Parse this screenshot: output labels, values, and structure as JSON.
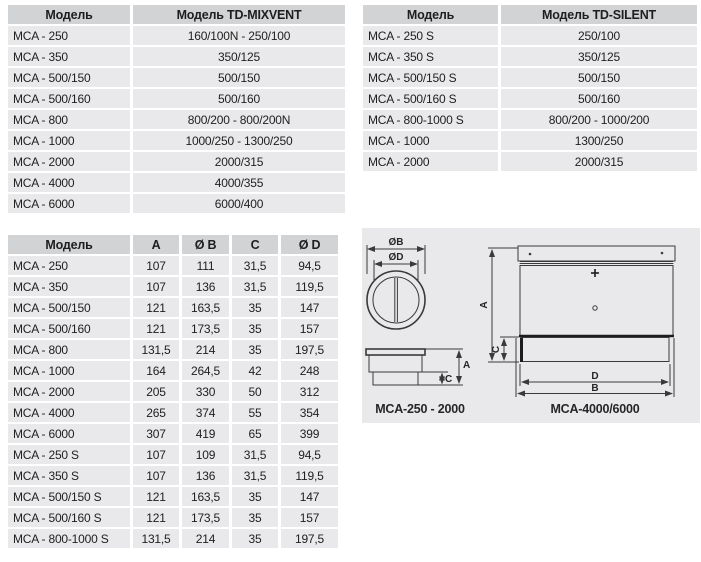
{
  "colors": {
    "page_bg": "#ffffff",
    "table_header_bg": "#d2d3d5",
    "table_row_bg": "#e9e9eb",
    "text": "#1e1e1e",
    "diagram_panel_bg": "#e9e9eb",
    "diagram_line": "#3a3a3a"
  },
  "tables": [
    {
      "id": "mixvent",
      "headers": [
        "Модель",
        "Модель TD-MIXVENT"
      ],
      "rows": [
        [
          "MCA - 250",
          "160/100N - 250/100"
        ],
        [
          "MCA - 350",
          "350/125"
        ],
        [
          "MCA - 500/150",
          "500/150"
        ],
        [
          "MCA - 500/160",
          "500/160"
        ],
        [
          "MCA - 800",
          "800/200 - 800/200N"
        ],
        [
          "MCA - 1000",
          "1000/250 - 1300/250"
        ],
        [
          "MCA - 2000",
          "2000/315"
        ],
        [
          "MCA - 4000",
          "4000/355"
        ],
        [
          "MCA - 6000",
          "6000/400"
        ]
      ]
    },
    {
      "id": "silent",
      "headers": [
        "Модель",
        "Модель TD-SILENT"
      ],
      "rows": [
        [
          "MCA - 250 S",
          "250/100"
        ],
        [
          "MCA - 350 S",
          "350/125"
        ],
        [
          "MCA - 500/150 S",
          "500/150"
        ],
        [
          "MCA - 500/160 S",
          "500/160"
        ],
        [
          "MCA - 800-1000 S",
          "800/200 - 1000/200"
        ],
        [
          "MCA - 1000",
          "1300/250"
        ],
        [
          "MCA - 2000",
          "2000/315"
        ]
      ]
    },
    {
      "id": "dimensions",
      "headers": [
        "Модель",
        "A",
        "Ø B",
        "C",
        "Ø D"
      ],
      "rows": [
        [
          "MCA - 250",
          "107",
          "111",
          "31,5",
          "94,5"
        ],
        [
          "MCA - 350",
          "107",
          "136",
          "31,5",
          "119,5"
        ],
        [
          "MCA - 500/150",
          "121",
          "163,5",
          "35",
          "147"
        ],
        [
          "MCA - 500/160",
          "121",
          "173,5",
          "35",
          "157"
        ],
        [
          "MCA - 800",
          "131,5",
          "214",
          "35",
          "197,5"
        ],
        [
          "MCA - 1000",
          "164",
          "264,5",
          "42",
          "248"
        ],
        [
          "MCA - 2000",
          "205",
          "330",
          "50",
          "312"
        ],
        [
          "MCA - 4000",
          "265",
          "374",
          "55",
          "354"
        ],
        [
          "MCA - 6000",
          "307",
          "419",
          "65",
          "399"
        ],
        [
          "MCA - 250 S",
          "107",
          "109",
          "31,5",
          "94,5"
        ],
        [
          "MCA - 350 S",
          "107",
          "136",
          "31,5",
          "119,5"
        ],
        [
          "MCA - 500/150 S",
          "121",
          "163,5",
          "35",
          "147"
        ],
        [
          "MCA - 500/160 S",
          "121",
          "173,5",
          "35",
          "157"
        ],
        [
          "MCA - 800-1000 S",
          "131,5",
          "214",
          "35",
          "197,5"
        ]
      ]
    }
  ],
  "diagram": {
    "labels": {
      "dia_b": "ØB",
      "dia_d": "ØD",
      "a_left": "A",
      "c_left": "C",
      "a_right": "A",
      "c_right": "C",
      "d_bottom": "D",
      "b_bottom": "B",
      "caption_left": "MCA-250 - 2000",
      "caption_right": "MCA-4000/6000"
    }
  }
}
